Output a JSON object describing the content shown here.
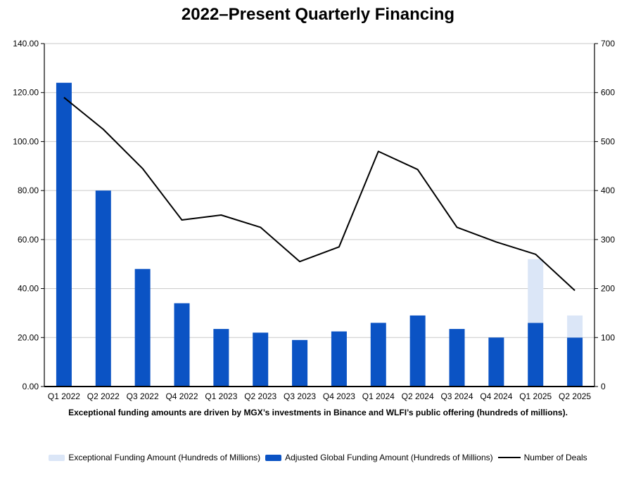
{
  "chart_data": {
    "type": "bar",
    "combo": "stacked bars (left axis) + line (right axis)",
    "title": "2022–Present Quarterly Financing",
    "caption": "Exceptional funding amounts are driven by MGX’s investments in Binance and WLFI’s public offering (hundreds of millions).",
    "categories": [
      "Q1 2022",
      "Q2 2022",
      "Q3 2022",
      "Q4 2022",
      "Q1 2023",
      "Q2 2023",
      "Q3 2023",
      "Q4 2023",
      "Q1 2024",
      "Q2 2024",
      "Q3 2024",
      "Q4 2024",
      "Q1 2025",
      "Q2 2025"
    ],
    "series": [
      {
        "name": "Exceptional Funding Amount (Hundreds of Millions)",
        "type": "bar",
        "stack_order": 2,
        "axis": "left",
        "color": "#dbe6f7",
        "values": [
          0,
          0,
          0,
          0,
          0,
          0,
          0,
          0,
          0,
          0,
          0,
          0,
          26,
          9
        ]
      },
      {
        "name": "Adjusted Global Funding Amount (Hundreds of Millions)",
        "type": "bar",
        "stack_order": 1,
        "axis": "left",
        "color": "#0b53c4",
        "values": [
          124,
          80,
          48,
          34,
          23.5,
          22,
          19,
          22.5,
          26,
          29,
          23.5,
          20,
          26,
          20
        ]
      },
      {
        "name": "Number of Deals",
        "type": "line",
        "axis": "right",
        "color": "#000000",
        "values": [
          590,
          525,
          445,
          340,
          350,
          325,
          255,
          285,
          480,
          443,
          325,
          295,
          270,
          196
        ]
      }
    ],
    "left_axis": {
      "min": 0,
      "max": 140,
      "step": 20,
      "tick_labels": [
        "0.00",
        "20.00",
        "40.00",
        "60.00",
        "80.00",
        "100.00",
        "120.00",
        "140.00"
      ]
    },
    "right_axis": {
      "min": 0,
      "max": 700,
      "step": 100,
      "tick_labels": [
        "0",
        "100",
        "200",
        "300",
        "400",
        "500",
        "600",
        "700"
      ]
    },
    "grid": "horizontal gridlines on",
    "legend_position": "bottom",
    "colors": {
      "gridline": "#c9c9c9",
      "axis": "#000000",
      "background": "#ffffff"
    }
  }
}
